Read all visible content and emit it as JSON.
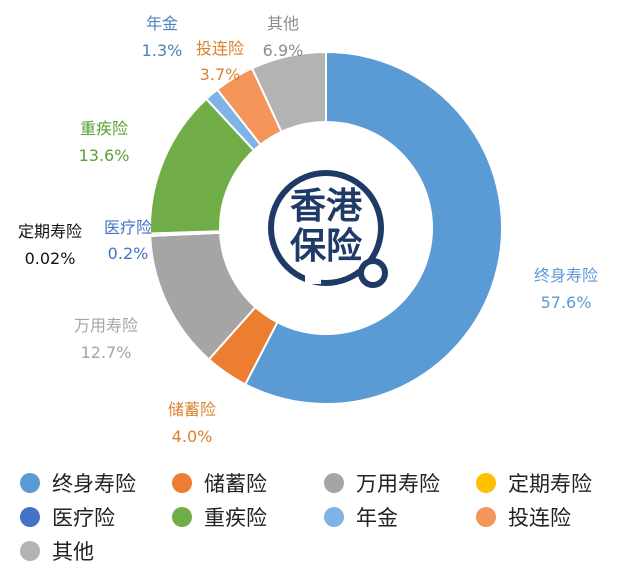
{
  "chart_data": {
    "type": "pie",
    "style": "donut",
    "title": "",
    "center_logo_text": [
      "香港",
      "保险"
    ],
    "legend_position": "bottom",
    "slices": [
      {
        "name": "终身寿险",
        "value": 57.6,
        "label": "57.6%",
        "color": "#5b9bd5"
      },
      {
        "name": "储蓄险",
        "value": 4.0,
        "label": "4.0%",
        "color": "#ed7d31"
      },
      {
        "name": "万用寿险",
        "value": 12.7,
        "label": "12.7%",
        "color": "#a5a5a5"
      },
      {
        "name": "定期寿险",
        "value": 0.02,
        "label": "0.02%",
        "color": "#ffc000"
      },
      {
        "name": "医疗险",
        "value": 0.2,
        "label": "0.2%",
        "color": "#4472c4"
      },
      {
        "name": "重疾险",
        "value": 13.6,
        "label": "13.6%",
        "color": "#70ad47"
      },
      {
        "name": "年金",
        "value": 1.3,
        "label": "1.3%",
        "color": "#7fb2e5"
      },
      {
        "name": "投连险",
        "value": 3.7,
        "label": "3.7%",
        "color": "#f4955a"
      },
      {
        "name": "其他",
        "value": 6.9,
        "label": "6.9%",
        "color": "#b3b3b3"
      }
    ],
    "label_colors": {
      "终身寿险": "#5b9bd5",
      "储蓄险": "#d9822b",
      "万用寿险": "#a5a5a5",
      "定期寿险": "#111111",
      "医疗险": "#4472c4",
      "重疾险": "#5c9e33",
      "年金": "#4f81bd",
      "投连险": "#d9822b",
      "其他": "#8c8c8c"
    }
  }
}
